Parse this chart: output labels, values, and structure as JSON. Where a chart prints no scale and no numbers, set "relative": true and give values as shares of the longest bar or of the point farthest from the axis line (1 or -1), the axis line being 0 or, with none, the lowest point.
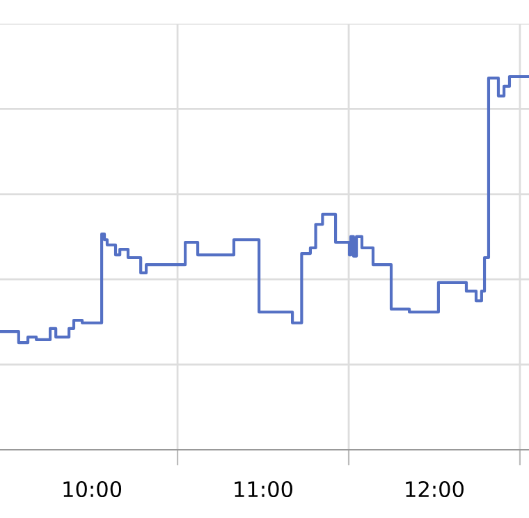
{
  "chart_data": {
    "type": "step",
    "relative": true,
    "grid": true,
    "marker": "none",
    "line_style": "solid",
    "xlim": [
      9.463,
      12.553
    ],
    "xticks": [
      {
        "value": 10,
        "label": "10:00"
      },
      {
        "value": 10.5,
        "label": null
      },
      {
        "value": 11,
        "label": "11:00"
      },
      {
        "value": 11.5,
        "label": null
      },
      {
        "value": 12,
        "label": "12:00"
      },
      {
        "value": 12.5,
        "label": null
      }
    ],
    "tick_labels": "x",
    "series": [
      {
        "color": "#5470c4",
        "x": [
          9.463,
          9.572,
          9.626,
          9.675,
          9.756,
          9.789,
          9.866,
          9.894,
          9.943,
          10.057,
          10.073,
          10.089,
          10.138,
          10.163,
          10.211,
          10.285,
          10.317,
          10.545,
          10.618,
          10.829,
          10.976,
          11.171,
          11.225,
          11.276,
          11.307,
          11.347,
          11.423,
          11.504,
          11.512,
          11.528,
          11.545,
          11.577,
          11.642,
          11.748,
          11.854,
          12.024,
          12.187,
          12.244,
          12.276,
          12.293,
          12.317,
          12.374,
          12.407,
          12.439,
          12.553
        ],
        "values": [
          0.317,
          0.287,
          0.302,
          0.295,
          0.325,
          0.302,
          0.325,
          0.347,
          0.34,
          0.578,
          0.563,
          0.549,
          0.522,
          0.537,
          0.515,
          0.474,
          0.496,
          0.556,
          0.522,
          0.563,
          0.369,
          0.34,
          0.526,
          0.541,
          0.604,
          0.631,
          0.556,
          0.522,
          0.571,
          0.519,
          0.571,
          0.541,
          0.496,
          0.377,
          0.369,
          0.448,
          0.425,
          0.399,
          0.425,
          0.515,
          0.996,
          0.948,
          0.974,
          1.0,
          1.0
        ]
      }
    ]
  }
}
